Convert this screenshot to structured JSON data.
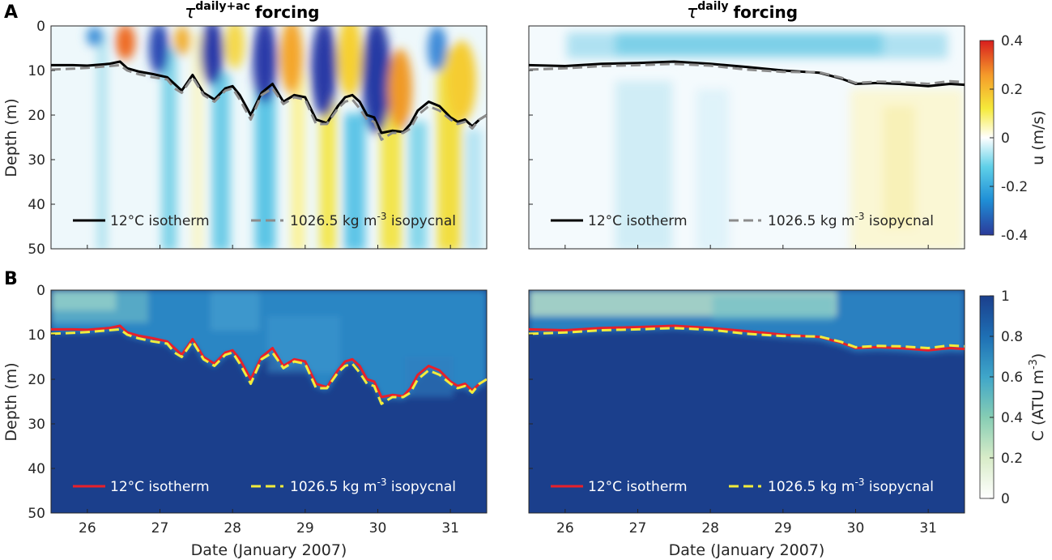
{
  "panel_labels": [
    "A",
    "B"
  ],
  "titles": {
    "left": {
      "symbol": "τ",
      "superscript": "daily+ac",
      "text": "forcing"
    },
    "right": {
      "symbol": "τ",
      "superscript": "daily",
      "text": "forcing"
    }
  },
  "xlabel": "Date (January 2007)",
  "ylabel": "Depth (m)",
  "colorbar_u": {
    "label": "u (m/s)",
    "ticks": [
      "0.4",
      "0.2",
      "0",
      "-0.2",
      "-0.4"
    ],
    "range": [
      -0.4,
      0.4
    ]
  },
  "colorbar_c": {
    "label_main": "C (ATU m",
    "label_sup": "-3",
    "label_end": ")",
    "ticks": [
      "1",
      "0.8",
      "0.6",
      "0.4",
      "0.2",
      "0"
    ],
    "range": [
      0,
      1
    ]
  },
  "legend": {
    "isotherm": "12°C isotherm",
    "isopycnal_prefix": "1026.5 kg m",
    "isopycnal_sup": "-3",
    "isopycnal_suffix": " isopycnal"
  },
  "colors": {
    "isotherm_top": "#000000",
    "isopycnal_top": "#8c8c8c",
    "isotherm_bottom": "#e8202a",
    "isopycnal_bottom": "#f2ec3c",
    "deep_blue": "#1b3f8c"
  },
  "chart_data": [
    {
      "type": "heatmap",
      "panel": "A-left",
      "title": "τ daily+ac forcing",
      "variable": "u (m/s)",
      "xlim": [
        25.5,
        31.5
      ],
      "ylim": [
        50,
        0
      ],
      "xticks": [
        26,
        27,
        28,
        29,
        30,
        31
      ],
      "yticks": [
        0,
        10,
        20,
        30,
        40,
        50
      ],
      "ylabel": "Depth (m)",
      "series": [
        {
          "name": "12°C isotherm",
          "x": [
            25.5,
            25.8,
            26.0,
            26.3,
            26.45,
            26.55,
            26.7,
            26.9,
            27.1,
            27.2,
            27.3,
            27.45,
            27.6,
            27.75,
            27.9,
            28.0,
            28.1,
            28.25,
            28.4,
            28.55,
            28.7,
            28.85,
            29.0,
            29.15,
            29.3,
            29.45,
            29.55,
            29.65,
            29.75,
            29.85,
            29.95,
            30.05,
            30.2,
            30.35,
            30.45,
            30.55,
            30.7,
            30.85,
            31.0,
            31.1,
            31.2,
            31.3,
            31.4,
            31.5
          ],
          "y": [
            8.8,
            8.8,
            8.9,
            8.5,
            8.0,
            9.5,
            10.2,
            10.8,
            11.5,
            13.0,
            14.5,
            11.0,
            15.0,
            16.5,
            14.0,
            13.5,
            15.5,
            20.0,
            15.0,
            13.0,
            17.0,
            15.5,
            16.0,
            21.0,
            21.8,
            18.0,
            16.0,
            15.5,
            17.0,
            20.0,
            20.5,
            24.0,
            23.5,
            23.8,
            22.0,
            19.0,
            17.0,
            18.0,
            20.5,
            21.5,
            21.0,
            22.5,
            21.0,
            20.0
          ]
        },
        {
          "name": "1026.5 kg m-3 isopycnal",
          "x": [
            25.5,
            25.8,
            26.0,
            26.3,
            26.45,
            26.55,
            26.7,
            26.9,
            27.1,
            27.2,
            27.3,
            27.45,
            27.6,
            27.75,
            27.9,
            28.0,
            28.1,
            28.25,
            28.4,
            28.55,
            28.7,
            28.85,
            29.0,
            29.15,
            29.3,
            29.45,
            29.55,
            29.65,
            29.75,
            29.85,
            29.95,
            30.05,
            30.2,
            30.35,
            30.45,
            30.55,
            30.7,
            30.85,
            31.0,
            31.1,
            31.2,
            31.3,
            31.4,
            31.5
          ],
          "y": [
            9.8,
            9.6,
            9.4,
            9.0,
            8.8,
            10.0,
            10.8,
            11.5,
            12.0,
            14.0,
            15.0,
            11.5,
            15.5,
            17.0,
            14.5,
            14.0,
            16.5,
            21.0,
            15.5,
            14.0,
            17.5,
            16.0,
            16.5,
            22.0,
            22.0,
            18.5,
            17.0,
            16.5,
            18.5,
            21.0,
            21.5,
            25.5,
            24.0,
            24.0,
            23.0,
            20.0,
            18.0,
            19.0,
            21.0,
            22.0,
            21.5,
            23.0,
            21.0,
            20.0
          ]
        }
      ]
    },
    {
      "type": "heatmap",
      "panel": "A-right",
      "title": "τ daily forcing",
      "variable": "u (m/s)",
      "xlim": [
        25.5,
        31.5
      ],
      "ylim": [
        50,
        0
      ],
      "xticks": [
        26,
        27,
        28,
        29,
        30,
        31
      ],
      "yticks": [
        0,
        10,
        20,
        30,
        40,
        50
      ],
      "series": [
        {
          "name": "12°C isotherm",
          "x": [
            25.5,
            26.0,
            26.5,
            27.0,
            27.5,
            28.0,
            28.5,
            29.0,
            29.5,
            29.8,
            30.0,
            30.3,
            30.6,
            31.0,
            31.3,
            31.5
          ],
          "y": [
            8.8,
            9.0,
            8.5,
            8.3,
            8.0,
            8.5,
            9.2,
            10.0,
            10.5,
            11.8,
            13.0,
            12.8,
            13.0,
            13.5,
            13.0,
            13.2
          ]
        },
        {
          "name": "1026.5 kg m-3 isopycnal",
          "x": [
            25.5,
            26.0,
            26.5,
            27.0,
            27.5,
            28.0,
            28.5,
            29.0,
            29.5,
            29.8,
            30.0,
            30.3,
            30.6,
            31.0,
            31.3,
            31.5
          ],
          "y": [
            9.8,
            9.5,
            9.0,
            8.8,
            8.5,
            8.9,
            9.8,
            10.3,
            10.4,
            11.6,
            12.8,
            12.5,
            12.6,
            13.0,
            12.4,
            12.6
          ]
        }
      ]
    },
    {
      "type": "heatmap",
      "panel": "B-left",
      "title": "",
      "variable": "C (ATU m-3)",
      "xlim": [
        25.5,
        31.5
      ],
      "ylim": [
        50,
        0
      ],
      "xticks": [
        26,
        27,
        28,
        29,
        30,
        31
      ],
      "yticks": [
        0,
        10,
        20,
        30,
        40,
        50
      ],
      "xlabel": "Date (January 2007)",
      "ylabel": "Depth (m)",
      "series": [
        {
          "name": "12°C isotherm",
          "ref": "same as A-left isotherm"
        },
        {
          "name": "1026.5 kg m-3 isopycnal",
          "ref": "same as A-left isopycnal"
        }
      ]
    },
    {
      "type": "heatmap",
      "panel": "B-right",
      "title": "",
      "variable": "C (ATU m-3)",
      "xlim": [
        25.5,
        31.5
      ],
      "ylim": [
        50,
        0
      ],
      "xticks": [
        26,
        27,
        28,
        29,
        30,
        31
      ],
      "yticks": [
        0,
        10,
        20,
        30,
        40,
        50
      ],
      "xlabel": "Date (January 2007)",
      "series": [
        {
          "name": "12°C isotherm",
          "ref": "same as A-right isotherm"
        },
        {
          "name": "1026.5 kg m-3 isopycnal",
          "ref": "same as A-right isopycnal"
        }
      ]
    }
  ]
}
